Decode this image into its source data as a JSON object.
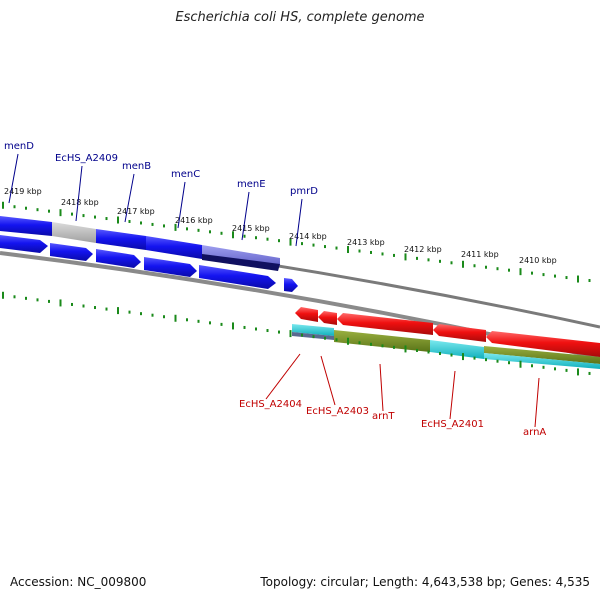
{
  "title": "Escherichia coli HS, complete genome",
  "accession": "Accession: NC_009800",
  "summary": "Topology: circular; Length: 4,643,538 bp; Genes: 4,535",
  "colors": {
    "forward_gene": "#1010ee",
    "forward_gene_light": "#b4b4b4",
    "forward_gene_pale": "#7070d8",
    "forward_gene_dark": "#101060",
    "reverse_gene": "#ee1010",
    "reverse_cds_cyan": "#20c8d0",
    "reverse_cds_olive": "#6e8a20",
    "backbone": "#808080",
    "tick": "#1a8a1a",
    "label_forward": "#00008b",
    "label_reverse": "#c00000"
  },
  "ticks": [
    {
      "label": "2419 kbp"
    },
    {
      "label": "2418 kbp"
    },
    {
      "label": "2417 kbp"
    },
    {
      "label": "2416 kbp"
    },
    {
      "label": "2415 kbp"
    },
    {
      "label": "2414 kbp"
    },
    {
      "label": "2413 kbp"
    },
    {
      "label": "2412 kbp"
    },
    {
      "label": "2411 kbp"
    },
    {
      "label": "2410 kbp"
    }
  ],
  "genes_forward": [
    {
      "name": "menD"
    },
    {
      "name": "EcHS_A2409"
    },
    {
      "name": "menB"
    },
    {
      "name": "menC"
    },
    {
      "name": "menE"
    },
    {
      "name": "pmrD"
    }
  ],
  "genes_reverse": [
    {
      "name": "EcHS_A2404"
    },
    {
      "name": "EcHS_A2403"
    },
    {
      "name": "arnT"
    },
    {
      "name": "EcHS_A2401"
    },
    {
      "name": "arnA"
    }
  ]
}
